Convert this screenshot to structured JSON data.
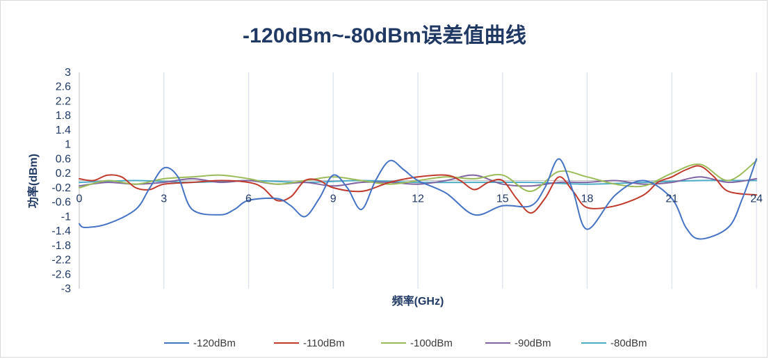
{
  "chart_data": {
    "type": "line",
    "title": "-120dBm~-80dBm误差值曲线",
    "xlabel": "频率(GHz)",
    "ylabel": "功率(dBm)",
    "xlim": [
      0,
      24
    ],
    "ylim": [
      -3,
      3
    ],
    "x_ticks": [
      0,
      3,
      6,
      9,
      12,
      15,
      18,
      21,
      24
    ],
    "x_tick_labels": [
      "0",
      "3",
      "6",
      "9",
      "12",
      "15",
      "18",
      "21",
      "24"
    ],
    "y_ticks": [
      3,
      2.6,
      2.2,
      1.8,
      1.4,
      1,
      0.6,
      0.2,
      -0.2,
      -0.6,
      -1,
      -1.4,
      -1.8,
      -2.2,
      -2.6,
      -3
    ],
    "y_tick_labels": [
      "3",
      "2.6",
      "2.2",
      "1.8",
      "1.4",
      "1",
      "0.6",
      "0.2",
      "-0.2",
      "-0.6",
      "-1",
      "-1.4",
      "-1.8",
      "-2.2",
      "-2.6",
      "-3"
    ],
    "grid": {
      "vertical": true,
      "horizontal": false
    },
    "legend": "bottom",
    "series": [
      {
        "name": "-120dBm",
        "color": "#4472c4",
        "points": [
          [
            0,
            -1.2
          ],
          [
            0.2,
            -1.3
          ],
          [
            1,
            -1.2
          ],
          [
            2,
            -0.8
          ],
          [
            2.5,
            -0.2
          ],
          [
            3,
            0.35
          ],
          [
            3.5,
            0.1
          ],
          [
            4,
            -0.8
          ],
          [
            5,
            -0.95
          ],
          [
            5.5,
            -0.8
          ],
          [
            6,
            -0.55
          ],
          [
            7,
            -0.5
          ],
          [
            7.5,
            -0.7
          ],
          [
            8,
            -1
          ],
          [
            8.5,
            -0.5
          ],
          [
            9,
            0.15
          ],
          [
            9.5,
            -0.2
          ],
          [
            10,
            -0.8
          ],
          [
            10.5,
            0
          ],
          [
            11,
            0.55
          ],
          [
            11.5,
            0.3
          ],
          [
            12,
            0
          ],
          [
            13,
            -0.35
          ],
          [
            14,
            -0.95
          ],
          [
            15,
            -0.7
          ],
          [
            16,
            -0.7
          ],
          [
            16.5,
            -0.2
          ],
          [
            17,
            0.6
          ],
          [
            17.5,
            -0.3
          ],
          [
            18,
            -1.35
          ],
          [
            19,
            -0.4
          ],
          [
            20,
            0
          ],
          [
            21,
            -0.5
          ],
          [
            21.5,
            -1.3
          ],
          [
            22,
            -1.62
          ],
          [
            23,
            -1.3
          ],
          [
            23.5,
            -0.5
          ],
          [
            24,
            0.6
          ]
        ]
      },
      {
        "name": "-110dBm",
        "color": "#c0392b",
        "points": [
          [
            0,
            0.05
          ],
          [
            0.5,
            0
          ],
          [
            1,
            0.15
          ],
          [
            1.5,
            0.1
          ],
          [
            2,
            -0.2
          ],
          [
            2.5,
            -0.25
          ],
          [
            3,
            -0.1
          ],
          [
            4,
            -0.05
          ],
          [
            5,
            0
          ],
          [
            6,
            -0.05
          ],
          [
            6.5,
            -0.2
          ],
          [
            7,
            -0.55
          ],
          [
            7.5,
            -0.45
          ],
          [
            8,
            0
          ],
          [
            8.5,
            0
          ],
          [
            9,
            -0.2
          ],
          [
            10,
            -0.3
          ],
          [
            11,
            -0.05
          ],
          [
            12,
            0.1
          ],
          [
            13,
            0.15
          ],
          [
            13.5,
            0
          ],
          [
            14,
            -0.25
          ],
          [
            14.5,
            -0.05
          ],
          [
            15,
            0
          ],
          [
            15.5,
            -0.5
          ],
          [
            16,
            -0.9
          ],
          [
            16.5,
            -0.5
          ],
          [
            17,
            0.1
          ],
          [
            17.5,
            -0.3
          ],
          [
            18,
            -0.75
          ],
          [
            19,
            -0.7
          ],
          [
            20,
            -0.4
          ],
          [
            20.5,
            -0.05
          ],
          [
            21,
            0.1
          ],
          [
            21.5,
            0.3
          ],
          [
            22,
            0.4
          ],
          [
            22.5,
            0.1
          ],
          [
            23,
            -0.3
          ],
          [
            24,
            -0.4
          ]
        ]
      },
      {
        "name": "-100dBm",
        "color": "#9bbb59",
        "points": [
          [
            0,
            -0.2
          ],
          [
            1,
            0
          ],
          [
            2,
            -0.1
          ],
          [
            3,
            0.05
          ],
          [
            4,
            0.1
          ],
          [
            5,
            0.15
          ],
          [
            6,
            0.05
          ],
          [
            7,
            -0.1
          ],
          [
            8,
            0
          ],
          [
            9,
            0.1
          ],
          [
            10,
            0
          ],
          [
            11,
            -0.1
          ],
          [
            12,
            0
          ],
          [
            13,
            0.1
          ],
          [
            14,
            0.05
          ],
          [
            15,
            0.15
          ],
          [
            16,
            -0.3
          ],
          [
            17,
            0.25
          ],
          [
            18,
            0.1
          ],
          [
            19,
            -0.1
          ],
          [
            20,
            -0.15
          ],
          [
            21,
            0.2
          ],
          [
            22,
            0.45
          ],
          [
            23,
            0
          ],
          [
            24,
            0.55
          ]
        ]
      },
      {
        "name": "-90dBm",
        "color": "#8064a2",
        "points": [
          [
            0,
            -0.15
          ],
          [
            1,
            -0.05
          ],
          [
            2,
            -0.1
          ],
          [
            3,
            -0.05
          ],
          [
            4,
            0.05
          ],
          [
            5,
            -0.05
          ],
          [
            6,
            0
          ],
          [
            7,
            -0.1
          ],
          [
            8,
            -0.05
          ],
          [
            9,
            -0.15
          ],
          [
            10,
            -0.05
          ],
          [
            11,
            -0.05
          ],
          [
            12,
            -0.1
          ],
          [
            13,
            0
          ],
          [
            14,
            0.15
          ],
          [
            15,
            -0.1
          ],
          [
            16,
            -0.15
          ],
          [
            17,
            -0.05
          ],
          [
            18,
            -0.05
          ],
          [
            19,
            0
          ],
          [
            20,
            -0.1
          ],
          [
            21,
            -0.05
          ],
          [
            22,
            0.1
          ],
          [
            23,
            -0.05
          ],
          [
            24,
            0.05
          ]
        ]
      },
      {
        "name": "-80dBm",
        "color": "#4bacc6",
        "points": [
          [
            0,
            -0.05
          ],
          [
            2,
            0
          ],
          [
            4,
            -0.05
          ],
          [
            6,
            0
          ],
          [
            8,
            -0.05
          ],
          [
            10,
            0
          ],
          [
            12,
            -0.05
          ],
          [
            14,
            -0.05
          ],
          [
            16,
            -0.05
          ],
          [
            18,
            -0.1
          ],
          [
            20,
            -0.05
          ],
          [
            22,
            0
          ],
          [
            24,
            0
          ]
        ]
      }
    ]
  }
}
